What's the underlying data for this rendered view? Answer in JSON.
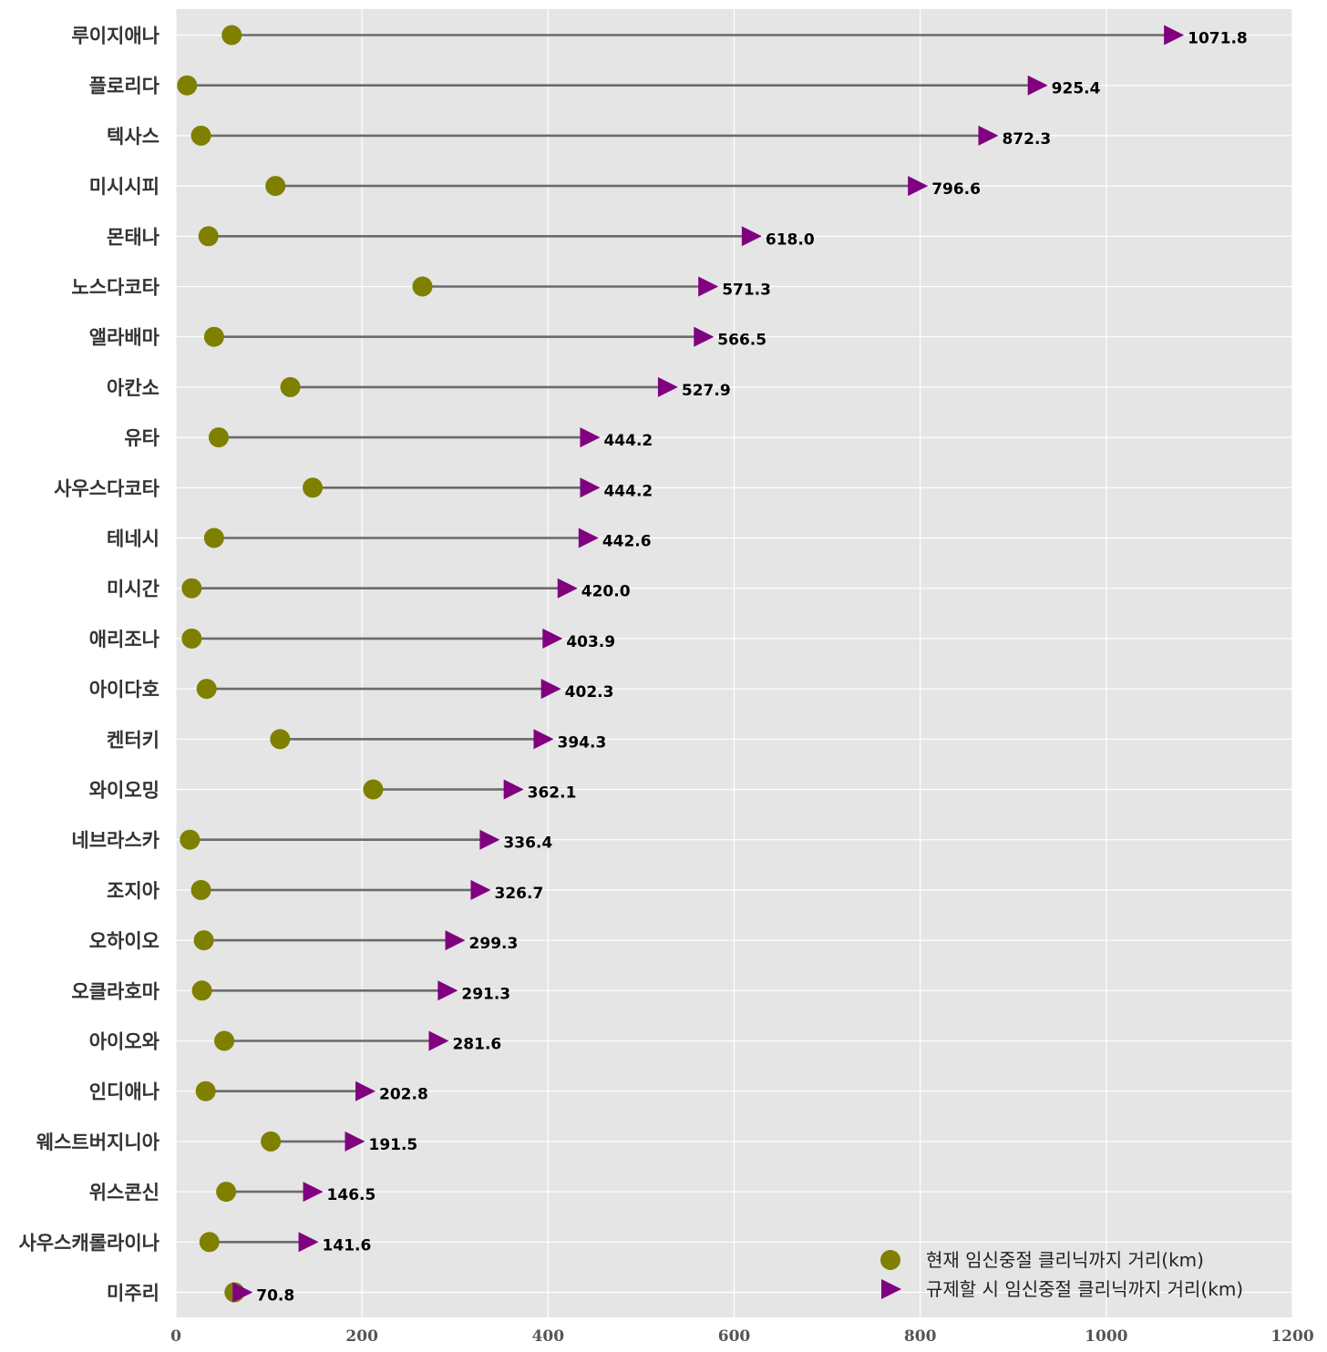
{
  "colors": {
    "background": "#ffffff",
    "plot_background": "#e5e5e5",
    "grid": "#ffffff",
    "connector": "#6b6b6b",
    "current_marker": "#7f7f00",
    "regulated_marker": "#800080"
  },
  "legend": {
    "placement": "lower-right",
    "items": [
      {
        "marker": "circle",
        "label": "현재 임신중절 클리닉까지 거리(km)"
      },
      {
        "marker": "triangle-right",
        "label": "규제할 시 임신중절 클리닉까지 거리(km)"
      }
    ]
  },
  "chart_data": {
    "type": "dumbbell",
    "title": "",
    "xlabel": "",
    "ylabel": "",
    "xlim": [
      0,
      1200
    ],
    "xticks": [
      0,
      200,
      400,
      600,
      800,
      1000,
      1200
    ],
    "grid": true,
    "categories": [
      "루이지애나",
      "플로리다",
      "텍사스",
      "미시시피",
      "몬태나",
      "노스다코타",
      "앨라배마",
      "아칸소",
      "유타",
      "사우스다코타",
      "테네시",
      "미시간",
      "애리조나",
      "아이다호",
      "켄터키",
      "와이오밍",
      "네브라스카",
      "조지아",
      "오하이오",
      "오클라호마",
      "아이오와",
      "인디애나",
      "웨스트버지니아",
      "위스콘신",
      "사우스캐롤라이나",
      "미주리"
    ],
    "series": [
      {
        "name": "현재 임신중절 클리닉까지 거리(km)",
        "values": [
          60,
          12,
          27,
          107,
          35,
          265,
          41,
          123,
          46,
          147,
          41,
          17,
          17,
          33,
          112,
          212,
          15,
          27,
          30,
          28,
          52,
          32,
          102,
          54,
          36,
          63
        ]
      },
      {
        "name": "규제할 시 임신중절 클리닉까지 거리(km)",
        "values": [
          1071.8,
          925.4,
          872.3,
          796.6,
          618.0,
          571.3,
          566.5,
          527.9,
          444.2,
          444.2,
          442.6,
          420.0,
          403.9,
          402.3,
          394.3,
          362.1,
          336.4,
          326.7,
          299.3,
          291.3,
          281.6,
          202.8,
          191.5,
          146.5,
          141.6,
          70.8
        ]
      }
    ],
    "value_labels": [
      "1071.8",
      "925.4",
      "872.3",
      "796.6",
      "618.0",
      "571.3",
      "566.5",
      "527.9",
      "444.2",
      "444.2",
      "442.6",
      "420.0",
      "403.9",
      "402.3",
      "394.3",
      "362.1",
      "336.4",
      "326.7",
      "299.3",
      "291.3",
      "281.6",
      "202.8",
      "191.5",
      "146.5",
      "141.6",
      "70.8"
    ]
  }
}
